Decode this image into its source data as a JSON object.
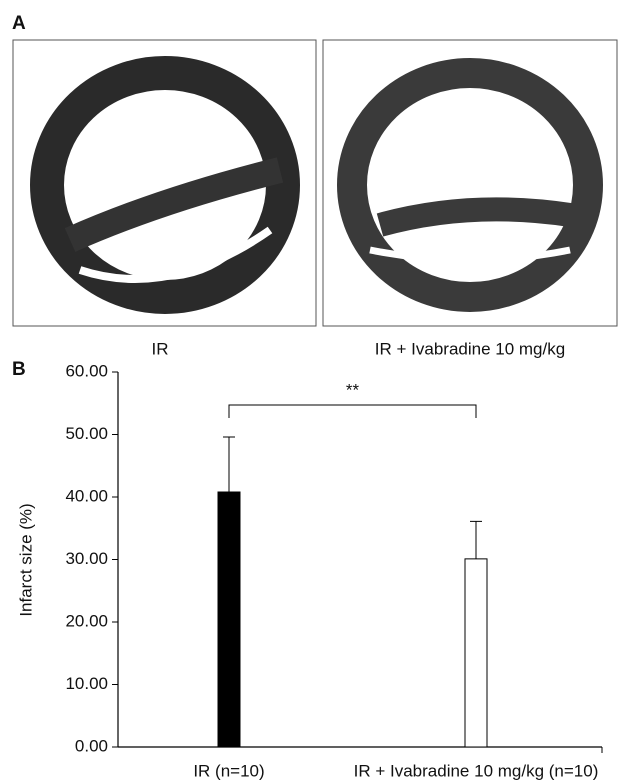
{
  "panel_a": {
    "label": "A",
    "captions": [
      "IR",
      "IR + Ivabradine 10 mg/kg"
    ]
  },
  "chart_data": {
    "type": "bar",
    "panel_label": "B",
    "y_label": "Infarct size (%)",
    "categories": [
      "IR (n=10)",
      "IR + Ivabradine 10 mg/kg (n=10)"
    ],
    "values": [
      40.8,
      30.1
    ],
    "errors": [
      8.8,
      6.0
    ],
    "colors": [
      "#000000",
      "#ffffff"
    ],
    "ylim": [
      0,
      60
    ],
    "yticks": [
      {
        "value": 0,
        "label": "0.00"
      },
      {
        "value": 10,
        "label": "10.00"
      },
      {
        "value": 20,
        "label": "20.00"
      },
      {
        "value": 30,
        "label": "30.00"
      },
      {
        "value": 40,
        "label": "40.00"
      },
      {
        "value": 50,
        "label": "50.00"
      },
      {
        "value": 60,
        "label": "60.00"
      }
    ],
    "annotation": "**",
    "grid": false
  }
}
